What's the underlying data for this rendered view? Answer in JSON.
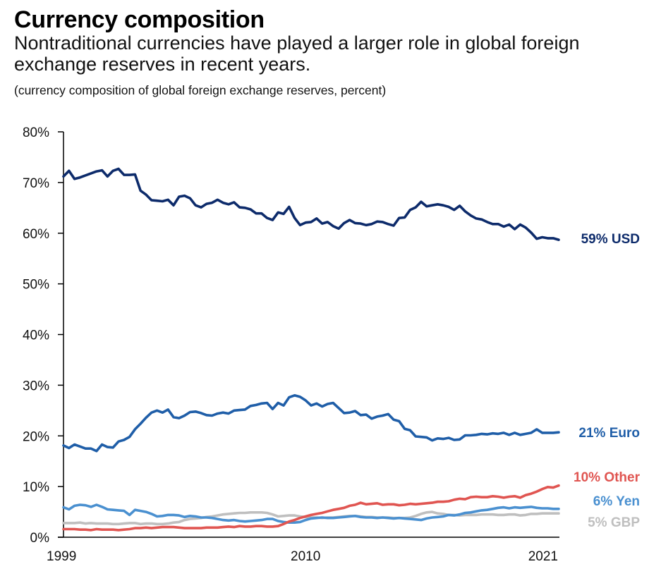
{
  "header": {
    "title": "Currency composition",
    "subtitle": "Nontraditional currencies have played a larger role in global foreign exchange reserves in recent years.",
    "note": "(currency composition of global foreign exchange reserves, percent)"
  },
  "chart_data": {
    "type": "line",
    "title": "Currency composition",
    "subtitle": "Nontraditional currencies have played a larger role in global foreign exchange reserves in recent years.",
    "xlabel": "",
    "ylabel": "(currency composition of global foreign exchange reserves, percent)",
    "xlim": [
      1999.0,
      2021.5
    ],
    "ylim": [
      0,
      80
    ],
    "x_ticks": [
      1999,
      2010,
      2021
    ],
    "x_tick_labels": [
      "1999",
      "2010",
      "2021"
    ],
    "y_ticks": [
      0,
      10,
      20,
      30,
      40,
      50,
      60,
      70,
      80
    ],
    "y_tick_labels": [
      "0%",
      "10%",
      "20%",
      "30%",
      "40%",
      "50%",
      "60%",
      "70%",
      "80%"
    ],
    "grid": false,
    "legend": "direct labels at right end of each line",
    "x": [
      1999.0,
      1999.25,
      1999.5,
      1999.75,
      2000.0,
      2000.25,
      2000.5,
      2000.75,
      2001.0,
      2001.25,
      2001.5,
      2001.75,
      2002.0,
      2002.25,
      2002.5,
      2002.75,
      2003.0,
      2003.25,
      2003.5,
      2003.75,
      2004.0,
      2004.25,
      2004.5,
      2004.75,
      2005.0,
      2005.25,
      2005.5,
      2005.75,
      2006.0,
      2006.25,
      2006.5,
      2006.75,
      2007.0,
      2007.25,
      2007.5,
      2007.75,
      2008.0,
      2008.25,
      2008.5,
      2008.75,
      2009.0,
      2009.25,
      2009.5,
      2009.75,
      2010.0,
      2010.25,
      2010.5,
      2010.75,
      2011.0,
      2011.25,
      2011.5,
      2011.75,
      2012.0,
      2012.25,
      2012.5,
      2012.75,
      2013.0,
      2013.25,
      2013.5,
      2013.75,
      2014.0,
      2014.25,
      2014.5,
      2014.75,
      2015.0,
      2015.25,
      2015.5,
      2015.75,
      2016.0,
      2016.25,
      2016.5,
      2016.75,
      2017.0,
      2017.25,
      2017.5,
      2017.75,
      2018.0,
      2018.25,
      2018.5,
      2018.75,
      2019.0,
      2019.25,
      2019.5,
      2019.75,
      2020.0,
      2020.25,
      2020.5,
      2020.75,
      2021.0,
      2021.25,
      2021.5
    ],
    "series": [
      {
        "name": "USD",
        "end_label": "59% USD",
        "color": "#0d2b6b",
        "values": [
          71.2,
          72.3,
          70.7,
          71.0,
          71.4,
          71.8,
          72.2,
          72.4,
          71.2,
          72.3,
          72.7,
          71.5,
          71.5,
          71.6,
          68.4,
          67.6,
          66.5,
          66.4,
          66.3,
          66.6,
          65.5,
          67.2,
          67.4,
          66.9,
          65.5,
          65.1,
          65.8,
          66.0,
          66.6,
          66.0,
          65.7,
          66.1,
          65.1,
          65.0,
          64.7,
          63.9,
          63.9,
          63.0,
          62.6,
          64.1,
          63.8,
          65.2,
          63.0,
          61.6,
          62.1,
          62.2,
          62.9,
          61.9,
          62.2,
          61.4,
          60.9,
          62.0,
          62.6,
          62.0,
          61.9,
          61.6,
          61.8,
          62.3,
          62.2,
          61.8,
          61.5,
          63.0,
          63.1,
          64.6,
          65.1,
          66.2,
          65.3,
          65.5,
          65.7,
          65.5,
          65.2,
          64.6,
          65.4,
          64.3,
          63.5,
          62.9,
          62.7,
          62.2,
          61.8,
          61.8,
          61.3,
          61.7,
          60.8,
          61.7,
          61.1,
          60.1,
          58.9,
          59.2,
          59.0,
          59.0,
          58.7
        ]
      },
      {
        "name": "Euro",
        "end_label": "21% Euro",
        "color": "#1f5ea8",
        "values": [
          18.1,
          17.6,
          18.3,
          17.9,
          17.5,
          17.5,
          17.0,
          18.3,
          17.8,
          17.7,
          18.9,
          19.2,
          19.8,
          21.3,
          22.4,
          23.6,
          24.6,
          25.0,
          24.6,
          25.2,
          23.7,
          23.5,
          24.0,
          24.7,
          24.8,
          24.5,
          24.1,
          24.0,
          24.4,
          24.6,
          24.4,
          25.0,
          25.1,
          25.2,
          25.9,
          26.1,
          26.4,
          26.5,
          25.3,
          26.5,
          26.0,
          27.6,
          28.0,
          27.7,
          27.0,
          26.0,
          26.4,
          25.8,
          26.3,
          26.5,
          25.5,
          24.5,
          24.6,
          24.9,
          24.1,
          24.2,
          23.4,
          23.8,
          24.0,
          24.3,
          23.2,
          22.9,
          21.4,
          21.1,
          19.9,
          19.8,
          19.7,
          19.1,
          19.5,
          19.4,
          19.6,
          19.2,
          19.3,
          20.1,
          20.1,
          20.2,
          20.4,
          20.3,
          20.5,
          20.4,
          20.6,
          20.2,
          20.6,
          20.2,
          20.4,
          20.6,
          21.3,
          20.6,
          20.6,
          20.6,
          20.7
        ]
      },
      {
        "name": "Other",
        "end_label": "10% Other",
        "color": "#e05551",
        "values": [
          1.6,
          1.6,
          1.6,
          1.5,
          1.5,
          1.4,
          1.6,
          1.5,
          1.5,
          1.5,
          1.4,
          1.5,
          1.6,
          1.8,
          1.8,
          1.9,
          1.8,
          1.9,
          2.0,
          2.0,
          2.0,
          1.9,
          1.8,
          1.8,
          1.8,
          1.8,
          1.9,
          1.9,
          1.9,
          2.0,
          2.1,
          2.0,
          2.2,
          2.1,
          2.1,
          2.2,
          2.2,
          2.1,
          2.1,
          2.2,
          2.6,
          3.1,
          3.4,
          3.8,
          4.1,
          4.4,
          4.6,
          4.8,
          5.1,
          5.4,
          5.6,
          5.8,
          6.2,
          6.4,
          6.8,
          6.5,
          6.6,
          6.7,
          6.4,
          6.5,
          6.5,
          6.3,
          6.4,
          6.6,
          6.5,
          6.6,
          6.7,
          6.8,
          7.0,
          7.0,
          7.1,
          7.4,
          7.6,
          7.5,
          7.9,
          8.0,
          7.9,
          7.9,
          8.1,
          8.0,
          7.8,
          8.0,
          8.1,
          7.8,
          8.3,
          8.6,
          9.0,
          9.5,
          9.9,
          9.8,
          10.2
        ]
      },
      {
        "name": "Yen",
        "end_label": "6% Yen",
        "color": "#4a90d0",
        "values": [
          5.9,
          5.5,
          6.2,
          6.4,
          6.3,
          6.0,
          6.4,
          6.0,
          5.5,
          5.4,
          5.3,
          5.2,
          4.4,
          5.4,
          5.2,
          5.0,
          4.6,
          4.1,
          4.2,
          4.4,
          4.4,
          4.3,
          4.0,
          4.2,
          4.1,
          3.9,
          3.9,
          3.8,
          3.6,
          3.4,
          3.3,
          3.4,
          3.2,
          3.1,
          3.2,
          3.3,
          3.4,
          3.6,
          3.6,
          3.2,
          3.0,
          2.9,
          2.9,
          3.0,
          3.4,
          3.7,
          3.8,
          3.9,
          3.8,
          3.8,
          3.9,
          4.0,
          4.1,
          4.2,
          4.0,
          3.9,
          3.9,
          3.8,
          3.9,
          3.8,
          3.7,
          3.8,
          3.7,
          3.6,
          3.5,
          3.4,
          3.7,
          3.9,
          4.0,
          4.1,
          4.4,
          4.3,
          4.5,
          4.8,
          4.9,
          5.1,
          5.3,
          5.4,
          5.6,
          5.8,
          5.9,
          5.7,
          5.9,
          5.8,
          5.9,
          6.0,
          5.8,
          5.7,
          5.7,
          5.6,
          5.6
        ]
      },
      {
        "name": "GBP",
        "end_label": "5% GBP",
        "color": "#bfbfbf",
        "values": [
          2.8,
          2.8,
          2.8,
          2.9,
          2.7,
          2.8,
          2.7,
          2.7,
          2.7,
          2.6,
          2.6,
          2.7,
          2.8,
          2.8,
          2.6,
          2.7,
          2.7,
          2.6,
          2.6,
          2.7,
          2.9,
          3.0,
          3.4,
          3.6,
          3.7,
          3.8,
          4.0,
          4.1,
          4.3,
          4.5,
          4.6,
          4.7,
          4.8,
          4.8,
          4.9,
          4.9,
          4.9,
          4.8,
          4.5,
          4.1,
          4.2,
          4.3,
          4.3,
          4.1,
          4.0,
          3.9,
          3.9,
          3.8,
          3.9,
          3.9,
          4.0,
          4.1,
          4.2,
          4.2,
          4.1,
          4.0,
          4.0,
          3.9,
          3.9,
          3.9,
          3.8,
          3.8,
          3.8,
          3.9,
          4.2,
          4.6,
          4.9,
          5.0,
          4.7,
          4.6,
          4.4,
          4.4,
          4.3,
          4.4,
          4.4,
          4.4,
          4.5,
          4.5,
          4.5,
          4.4,
          4.4,
          4.5,
          4.5,
          4.3,
          4.4,
          4.6,
          4.6,
          4.7,
          4.7,
          4.7,
          4.7
        ]
      }
    ]
  }
}
